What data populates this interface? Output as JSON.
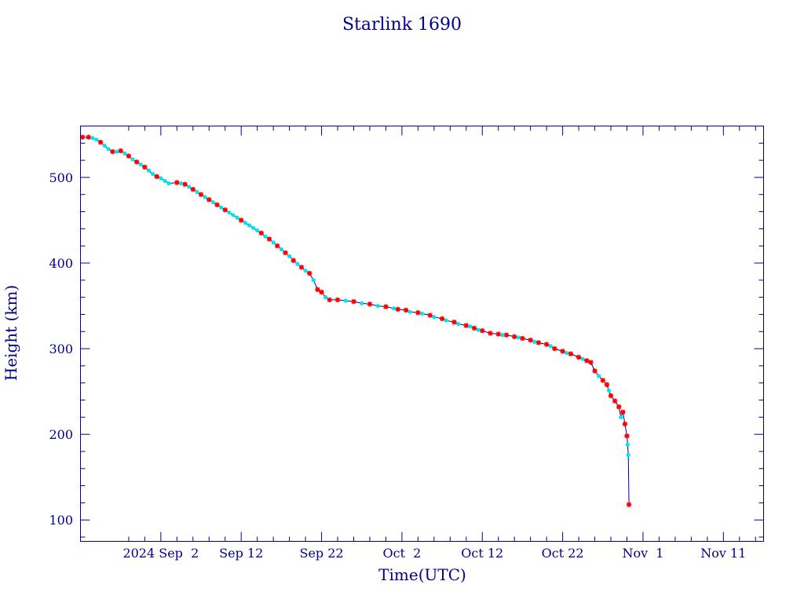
{
  "chart_data": {
    "type": "scatter",
    "title": "Starlink 1690",
    "xlabel": "Time(UTC)",
    "ylabel": "Height (km)",
    "x_range": [
      "2024-08-23",
      "2024-11-16"
    ],
    "ylim": [
      75,
      560
    ],
    "x_ticks": [
      {
        "date": "2024-09-02",
        "label": "2024 Sep  2"
      },
      {
        "date": "2024-09-12",
        "label": "Sep 12"
      },
      {
        "date": "2024-09-22",
        "label": "Sep 22"
      },
      {
        "date": "2024-10-02",
        "label": "Oct  2"
      },
      {
        "date": "2024-10-12",
        "label": "Oct 12"
      },
      {
        "date": "2024-10-22",
        "label": "Oct 22"
      },
      {
        "date": "2024-11-01",
        "label": "Nov  1"
      },
      {
        "date": "2024-11-11",
        "label": "Nov 11"
      }
    ],
    "y_ticks": [
      100,
      200,
      300,
      400,
      500
    ],
    "grid": false,
    "colors": {
      "line": "#00008b",
      "series_a": "#ff0000",
      "series_b": "#00e5ee"
    },
    "series": [
      {
        "marker": "star",
        "color": "#ff0000",
        "points": [
          [
            "2024-08-23T06:00",
            547
          ],
          [
            "2024-08-24T00:00",
            547
          ],
          [
            "2024-08-25T12:00",
            541
          ],
          [
            "2024-08-27T00:00",
            530
          ],
          [
            "2024-08-28T00:00",
            531
          ],
          [
            "2024-08-29T00:00",
            525
          ],
          [
            "2024-08-30T00:00",
            518
          ],
          [
            "2024-08-31T00:00",
            512
          ],
          [
            "2024-09-01T12:00",
            501
          ],
          [
            "2024-09-04T00:00",
            494
          ],
          [
            "2024-09-05T00:00",
            492
          ],
          [
            "2024-09-06T00:00",
            486
          ],
          [
            "2024-09-07T00:00",
            480
          ],
          [
            "2024-09-08T00:00",
            474
          ],
          [
            "2024-09-09T00:00",
            468
          ],
          [
            "2024-09-10T00:00",
            462
          ],
          [
            "2024-09-12T00:00",
            450
          ],
          [
            "2024-09-14T12:00",
            435
          ],
          [
            "2024-09-15T12:00",
            428
          ],
          [
            "2024-09-16T12:00",
            420
          ],
          [
            "2024-09-17T12:00",
            412
          ],
          [
            "2024-09-18T12:00",
            403
          ],
          [
            "2024-09-19T12:00",
            395
          ],
          [
            "2024-09-20T12:00",
            388
          ],
          [
            "2024-09-21T12:00",
            369
          ],
          [
            "2024-09-22T00:00",
            366
          ],
          [
            "2024-09-23T00:00",
            357
          ],
          [
            "2024-09-24T00:00",
            357
          ],
          [
            "2024-09-26T00:00",
            355
          ],
          [
            "2024-09-28T00:00",
            352
          ],
          [
            "2024-09-30T00:00",
            349
          ],
          [
            "2024-10-01T12:00",
            346
          ],
          [
            "2024-10-02T12:00",
            345
          ],
          [
            "2024-10-04T00:00",
            342
          ],
          [
            "2024-10-05T12:00",
            339
          ],
          [
            "2024-10-07T00:00",
            335
          ],
          [
            "2024-10-08T12:00",
            331
          ],
          [
            "2024-10-10T00:00",
            327
          ],
          [
            "2024-10-11T00:00",
            324
          ],
          [
            "2024-10-12T00:00",
            321
          ],
          [
            "2024-10-13T00:00",
            318
          ],
          [
            "2024-10-14T00:00",
            317
          ],
          [
            "2024-10-15T00:00",
            316
          ],
          [
            "2024-10-16T00:00",
            314
          ],
          [
            "2024-10-17T00:00",
            312
          ],
          [
            "2024-10-18T00:00",
            310
          ],
          [
            "2024-10-19T00:00",
            307
          ],
          [
            "2024-10-20T00:00",
            305
          ],
          [
            "2024-10-21T00:00",
            300
          ],
          [
            "2024-10-22T00:00",
            297
          ],
          [
            "2024-10-23T00:00",
            294
          ],
          [
            "2024-10-24T00:00",
            290
          ],
          [
            "2024-10-25T00:00",
            286
          ],
          [
            "2024-10-25T12:00",
            284
          ],
          [
            "2024-10-26T00:00",
            274
          ],
          [
            "2024-10-27T00:00",
            263
          ],
          [
            "2024-10-27T12:00",
            258
          ],
          [
            "2024-10-28T00:00",
            245
          ],
          [
            "2024-10-28T12:00",
            239
          ],
          [
            "2024-10-29T00:00",
            232
          ],
          [
            "2024-10-29T12:00",
            226
          ],
          [
            "2024-10-29T18:00",
            212
          ],
          [
            "2024-10-30T00:00",
            198
          ],
          [
            "2024-10-30T06:00",
            118
          ]
        ]
      },
      {
        "marker": "dot",
        "color": "#00e5ee",
        "points": [
          [
            "2024-08-24T12:00",
            546
          ],
          [
            "2024-08-25T00:00",
            544
          ],
          [
            "2024-08-26T00:00",
            537
          ],
          [
            "2024-08-26T12:00",
            533
          ],
          [
            "2024-08-27T12:00",
            530
          ],
          [
            "2024-08-28T12:00",
            528
          ],
          [
            "2024-08-29T12:00",
            521
          ],
          [
            "2024-08-30T12:00",
            515
          ],
          [
            "2024-08-31T12:00",
            508
          ],
          [
            "2024-09-01T00:00",
            504
          ],
          [
            "2024-09-02T00:00",
            499
          ],
          [
            "2024-09-02T12:00",
            496
          ],
          [
            "2024-09-03T00:00",
            493
          ],
          [
            "2024-09-04T12:00",
            493
          ],
          [
            "2024-09-05T12:00",
            489
          ],
          [
            "2024-09-06T12:00",
            483
          ],
          [
            "2024-09-07T12:00",
            477
          ],
          [
            "2024-09-08T12:00",
            471
          ],
          [
            "2024-09-09T12:00",
            465
          ],
          [
            "2024-09-10T12:00",
            459
          ],
          [
            "2024-09-11T00:00",
            456
          ],
          [
            "2024-09-11T12:00",
            453
          ],
          [
            "2024-09-12T12:00",
            447
          ],
          [
            "2024-09-13T00:00",
            444
          ],
          [
            "2024-09-13T12:00",
            441
          ],
          [
            "2024-09-14T00:00",
            438
          ],
          [
            "2024-09-15T00:00",
            431
          ],
          [
            "2024-09-16T00:00",
            424
          ],
          [
            "2024-09-17T00:00",
            416
          ],
          [
            "2024-09-18T00:00",
            408
          ],
          [
            "2024-09-19T00:00",
            399
          ],
          [
            "2024-09-20T00:00",
            391
          ],
          [
            "2024-09-21T00:00",
            380
          ],
          [
            "2024-09-22T12:00",
            360
          ],
          [
            "2024-09-25T00:00",
            356
          ],
          [
            "2024-09-27T00:00",
            353
          ],
          [
            "2024-09-29T00:00",
            350
          ],
          [
            "2024-10-01T00:00",
            347
          ],
          [
            "2024-10-03T00:00",
            343
          ],
          [
            "2024-10-04T12:00",
            341
          ],
          [
            "2024-10-06T00:00",
            337
          ],
          [
            "2024-10-07T12:00",
            333
          ],
          [
            "2024-10-09T00:00",
            329
          ],
          [
            "2024-10-10T12:00",
            326
          ],
          [
            "2024-10-11T12:00",
            322
          ],
          [
            "2024-10-14T12:00",
            316
          ],
          [
            "2024-10-16T12:00",
            313
          ],
          [
            "2024-10-18T12:00",
            308
          ],
          [
            "2024-10-20T12:00",
            303
          ],
          [
            "2024-10-22T12:00",
            295
          ],
          [
            "2024-10-24T12:00",
            288
          ],
          [
            "2024-10-26T12:00",
            268
          ],
          [
            "2024-10-27T18:00",
            251
          ],
          [
            "2024-10-29T06:00",
            220
          ],
          [
            "2024-10-30T02:00",
            188
          ],
          [
            "2024-10-30T04:00",
            176
          ]
        ]
      }
    ]
  }
}
